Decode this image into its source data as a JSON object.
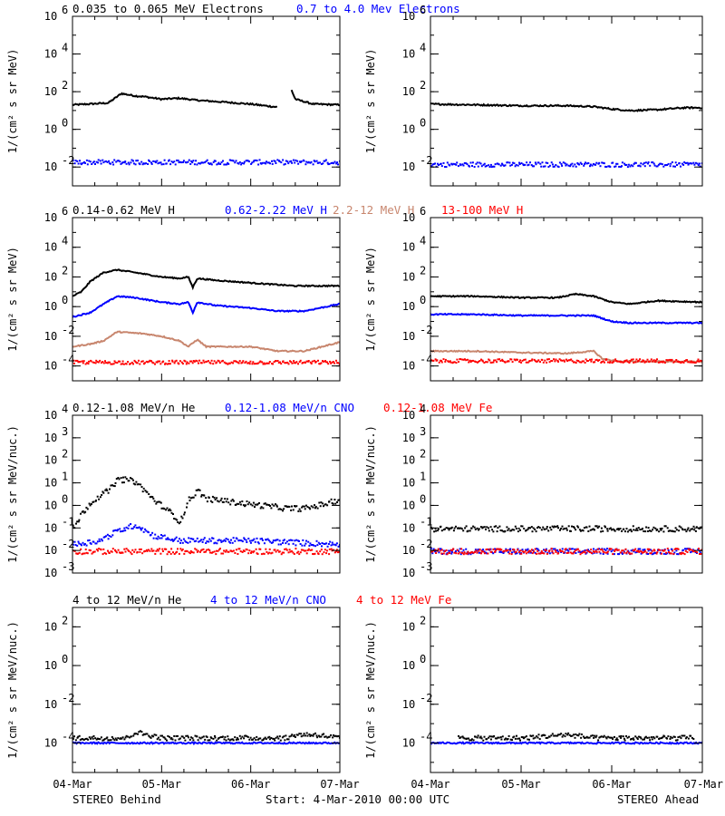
{
  "footer": {
    "left": "STEREO Behind",
    "center": "Start:  4-Mar-2010 00:00 UTC",
    "right": "STEREO Ahead"
  },
  "colors": {
    "black": "#000000",
    "blue": "#0000ff",
    "brown": "#c8866e",
    "red": "#ff0000"
  },
  "chart_data": [
    {
      "type": "scatter",
      "row": 1,
      "y_scale": "log",
      "ylabel": "1/(cm² s sr MeV)",
      "ylim": [
        0.001,
        1000000
      ],
      "y_ticks": [
        {
          "exp": -2,
          "label": "10"
        },
        {
          "exp": 0,
          "label": "10"
        },
        {
          "exp": 2,
          "label": "10"
        },
        {
          "exp": 4,
          "label": "10"
        },
        {
          "exp": 6,
          "label": "10"
        }
      ],
      "x_ticks": [
        "04-Mar",
        "05-Mar",
        "06-Mar",
        "07-Mar"
      ],
      "xlim": [
        "2010-03-04",
        "2010-03-07"
      ],
      "titles": [
        {
          "text": "0.035 to 0.065 MeV Electrons",
          "color": "#000000"
        },
        {
          "text": "0.7 to 4.0 Mev Electrons",
          "color": "#0000ff"
        }
      ],
      "panels": [
        {
          "spacecraft": "STEREO Behind",
          "series": [
            {
              "name": "0.035 to 0.065 MeV Electrons",
              "color": "#000000",
              "style": "line",
              "x": [
                0,
                0.4,
                0.55,
                0.7,
                0.8,
                1.0,
                1.2,
                1.4,
                1.7,
                2.0,
                2.3,
                2.4,
                2.45,
                2.5,
                2.7,
                3.0
              ],
              "y": [
                20,
                25,
                80,
                60,
                55,
                40,
                45,
                35,
                28,
                22,
                15,
                null,
                150,
                40,
                22,
                20
              ]
            },
            {
              "name": "0.7 to 4.0 Mev Electrons",
              "color": "#0000ff",
              "style": "dots",
              "x": [
                0,
                3
              ],
              "y": [
                0.02,
                0.02
              ]
            }
          ]
        },
        {
          "spacecraft": "STEREO Ahead",
          "series": [
            {
              "name": "0.035 to 0.065 MeV Electrons",
              "color": "#000000",
              "style": "line",
              "x": [
                0,
                0.5,
                1.0,
                1.5,
                1.8,
                2.0,
                2.2,
                2.5,
                2.8,
                3.0
              ],
              "y": [
                22,
                20,
                18,
                18,
                16,
                12,
                10,
                11,
                14,
                14
              ]
            },
            {
              "name": "0.7 to 4.0 Mev Electrons",
              "color": "#0000ff",
              "style": "dots",
              "x": [
                0,
                3
              ],
              "y": [
                0.015,
                0.015
              ]
            }
          ]
        }
      ]
    },
    {
      "type": "scatter",
      "row": 2,
      "y_scale": "log",
      "ylabel": "1/(cm² s sr MeV)",
      "ylim": [
        1e-05,
        1000000
      ],
      "y_ticks": [
        {
          "exp": -4,
          "label": "10"
        },
        {
          "exp": -2,
          "label": "10"
        },
        {
          "exp": 0,
          "label": "10"
        },
        {
          "exp": 2,
          "label": "10"
        },
        {
          "exp": 4,
          "label": "10"
        },
        {
          "exp": 6,
          "label": "10"
        }
      ],
      "x_ticks": [
        "04-Mar",
        "05-Mar",
        "06-Mar",
        "07-Mar"
      ],
      "xlim": [
        "2010-03-04",
        "2010-03-07"
      ],
      "titles": [
        {
          "text": "0.14-0.62 MeV H",
          "color": "#000000"
        },
        {
          "text": "0.62-2.22 MeV H",
          "color": "#0000ff"
        },
        {
          "text": "2.2-12 MeV H",
          "color": "#c8866e"
        },
        {
          "text": "13-100 MeV H",
          "color": "#ff0000"
        }
      ],
      "panels": [
        {
          "spacecraft": "STEREO Behind",
          "series": [
            {
              "name": "0.14-0.62 MeV H",
              "color": "#000000",
              "style": "line",
              "x": [
                0,
                0.1,
                0.2,
                0.35,
                0.5,
                0.7,
                1.0,
                1.2,
                1.3,
                1.35,
                1.4,
                1.6,
                2.0,
                2.3,
                2.5,
                3.0
              ],
              "y": [
                5,
                10,
                50,
                200,
                300,
                200,
                100,
                80,
                100,
                20,
                80,
                60,
                40,
                30,
                25,
                25
              ]
            },
            {
              "name": "0.62-2.22 MeV H",
              "color": "#0000ff",
              "style": "line",
              "x": [
                0,
                0.2,
                0.35,
                0.5,
                0.7,
                1.0,
                1.2,
                1.3,
                1.35,
                1.4,
                1.6,
                2.0,
                2.3,
                2.6,
                3.0
              ],
              "y": [
                0.2,
                0.4,
                1.5,
                5,
                4,
                2,
                1.5,
                2,
                0.4,
                2,
                1.2,
                0.8,
                0.5,
                0.5,
                1.5
              ]
            },
            {
              "name": "2.2-12 MeV H",
              "color": "#c8866e",
              "style": "line",
              "x": [
                0,
                0.2,
                0.35,
                0.5,
                0.8,
                1.0,
                1.2,
                1.3,
                1.4,
                1.5,
                1.6,
                2.0,
                2.3,
                2.6,
                3.0
              ],
              "y": [
                0.002,
                0.003,
                0.005,
                0.02,
                0.015,
                0.01,
                0.005,
                0.002,
                0.006,
                0.002,
                0.002,
                0.002,
                0.001,
                0.001,
                0.004
              ]
            },
            {
              "name": "13-100 MeV H",
              "color": "#ff0000",
              "style": "dots",
              "x": [
                0,
                3
              ],
              "y": [
                0.0002,
                0.0002
              ]
            }
          ]
        },
        {
          "spacecraft": "STEREO Ahead",
          "series": [
            {
              "name": "0.14-0.62 MeV H",
              "color": "#000000",
              "style": "line",
              "x": [
                0,
                0.5,
                1.0,
                1.4,
                1.6,
                1.8,
                2.0,
                2.2,
                2.5,
                3.0
              ],
              "y": [
                5,
                5,
                4,
                4,
                7,
                5,
                2,
                1.5,
                2.5,
                2
              ]
            },
            {
              "name": "0.62-2.22 MeV H",
              "color": "#0000ff",
              "style": "line",
              "x": [
                0,
                0.5,
                1.0,
                1.5,
                1.8,
                2.0,
                2.2,
                2.5,
                3.0
              ],
              "y": [
                0.3,
                0.3,
                0.25,
                0.25,
                0.25,
                0.1,
                0.08,
                0.08,
                0.08
              ]
            },
            {
              "name": "2.2-12 MeV H",
              "color": "#c8866e",
              "style": "line",
              "x": [
                0,
                0.5,
                1.0,
                1.5,
                1.8,
                1.9,
                2.1,
                2.5,
                3.0
              ],
              "y": [
                0.001,
                0.001,
                0.0008,
                0.0007,
                0.001,
                0.0003,
                0.0002,
                0.0002,
                0.0002
              ]
            },
            {
              "name": "13-100 MeV H",
              "color": "#ff0000",
              "style": "dots",
              "x": [
                0,
                3
              ],
              "y": [
                0.00025,
                0.00025
              ]
            }
          ]
        }
      ]
    },
    {
      "type": "scatter",
      "row": 3,
      "y_scale": "log",
      "ylabel": "1/(cm² s sr MeV/nuc.)",
      "ylim": [
        0.001,
        10000
      ],
      "y_ticks": [
        {
          "exp": -3,
          "label": "10"
        },
        {
          "exp": -2,
          "label": "10"
        },
        {
          "exp": -1,
          "label": "10"
        },
        {
          "exp": 0,
          "label": "10"
        },
        {
          "exp": 1,
          "label": "10"
        },
        {
          "exp": 2,
          "label": "10"
        },
        {
          "exp": 3,
          "label": "10"
        },
        {
          "exp": 4,
          "label": "10"
        }
      ],
      "x_ticks": [
        "04-Mar",
        "05-Mar",
        "06-Mar",
        "07-Mar"
      ],
      "xlim": [
        "2010-03-04",
        "2010-03-07"
      ],
      "titles": [
        {
          "text": "0.12-1.08 MeV/n He",
          "color": "#000000"
        },
        {
          "text": "0.12-1.08 MeV/n CNO",
          "color": "#0000ff"
        },
        {
          "text": "0.12-1.08 MeV Fe",
          "color": "#ff0000"
        }
      ],
      "panels": [
        {
          "spacecraft": "STEREO Behind",
          "series": [
            {
              "name": "0.12-1.08 MeV/n He",
              "color": "#000000",
              "style": "dots",
              "x": [
                0,
                0.1,
                0.2,
                0.3,
                0.4,
                0.5,
                0.6,
                0.7,
                0.8,
                0.9,
                1.0,
                1.1,
                1.2,
                1.3,
                1.4,
                1.5,
                1.6,
                1.8,
                2.0,
                2.2,
                2.4,
                2.6,
                2.8,
                3.0
              ],
              "y": [
                0.1,
                0.5,
                1.5,
                3,
                5,
                15,
                15,
                12,
                5,
                2,
                1,
                0.5,
                0.2,
                2,
                5,
                2,
                2,
                1.5,
                1.2,
                1,
                0.8,
                0.8,
                1.2,
                2
              ]
            },
            {
              "name": "0.12-1.08 MeV/n CNO",
              "color": "#0000ff",
              "style": "dots",
              "x": [
                0,
                0.3,
                0.5,
                0.7,
                0.9,
                1.2,
                2.0,
                3.0
              ],
              "y": [
                0.02,
                0.03,
                0.08,
                0.15,
                0.05,
                0.03,
                0.03,
                0.02
              ]
            },
            {
              "name": "0.12-1.08 MeV Fe",
              "color": "#ff0000",
              "style": "dots",
              "x": [
                0,
                3
              ],
              "y": [
                0.01,
                0.01
              ]
            }
          ]
        },
        {
          "spacecraft": "STEREO Ahead",
          "series": [
            {
              "name": "0.12-1.08 MeV/n He",
              "color": "#000000",
              "style": "dots",
              "x": [
                0,
                3
              ],
              "y": [
                0.1,
                0.1
              ]
            },
            {
              "name": "0.12-1.08 MeV/n CNO",
              "color": "#0000ff",
              "style": "dots",
              "x": [
                0,
                3
              ],
              "y": [
                0.01,
                0.01
              ]
            },
            {
              "name": "0.12-1.08 MeV Fe",
              "color": "#ff0000",
              "style": "dots",
              "x": [
                0,
                3
              ],
              "y": [
                0.01,
                0.01
              ]
            }
          ]
        }
      ]
    },
    {
      "type": "scatter",
      "row": 4,
      "y_scale": "log",
      "ylabel": "1/(cm² s sr MeV/nuc.)",
      "ylim": [
        3e-06,
        1000
      ],
      "y_ticks": [
        {
          "exp": -4,
          "label": "10"
        },
        {
          "exp": -2,
          "label": "10"
        },
        {
          "exp": 0,
          "label": "10"
        },
        {
          "exp": 2,
          "label": "10"
        }
      ],
      "x_ticks": [
        "04-Mar",
        "05-Mar",
        "06-Mar",
        "07-Mar"
      ],
      "xlim": [
        "2010-03-04",
        "2010-03-07"
      ],
      "titles": [
        {
          "text": "4 to 12 MeV/n He",
          "color": "#000000"
        },
        {
          "text": "4 to 12 MeV/n CNO",
          "color": "#0000ff"
        },
        {
          "text": "4 to 12 MeV Fe",
          "color": "#ff0000"
        }
      ],
      "panels": [
        {
          "spacecraft": "STEREO Behind",
          "series": [
            {
              "name": "4 to 12 MeV/n He",
              "color": "#000000",
              "style": "dots",
              "x": [
                0,
                0.3,
                0.6,
                0.7,
                1.0,
                1.5,
                2.0,
                2.4,
                2.5,
                2.7,
                3.0
              ],
              "y": [
                0.0002,
                0.0002,
                0.0002,
                0.0004,
                0.0002,
                0.0002,
                0.0002,
                0.0002,
                0.0003,
                0.0003,
                0.0002
              ]
            },
            {
              "name": "4 to 12 MeV/n CNO",
              "color": "#0000ff",
              "style": "line",
              "x": [
                0,
                3
              ],
              "y": [
                0.0001,
                0.0001
              ]
            }
          ]
        },
        {
          "spacecraft": "STEREO Ahead",
          "series": [
            {
              "name": "4 to 12 MeV/n He",
              "color": "#000000",
              "style": "dots",
              "x": [
                0.3,
                0.5,
                0.7,
                1.0,
                1.5,
                1.8,
                2.0,
                2.5,
                2.9
              ],
              "y": [
                0.0002,
                0.0002,
                0.0002,
                0.0002,
                0.0003,
                0.0002,
                0.0002,
                0.0002,
                0.0002
              ]
            },
            {
              "name": "4 to 12 MeV/n CNO",
              "color": "#0000ff",
              "style": "line",
              "x": [
                0,
                3
              ],
              "y": [
                0.0001,
                0.0001
              ]
            }
          ]
        }
      ]
    }
  ]
}
